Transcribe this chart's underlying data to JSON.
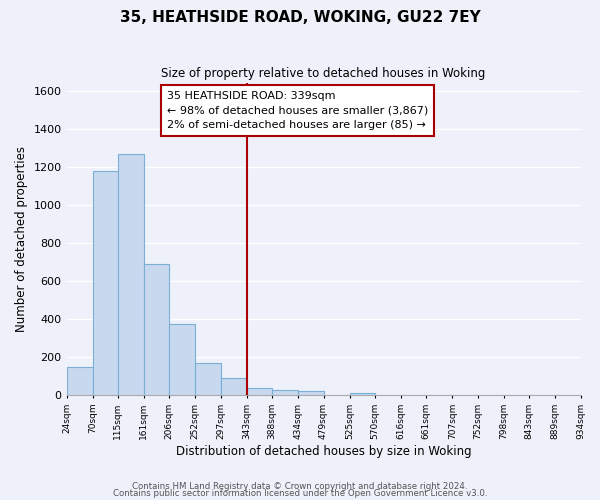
{
  "title": "35, HEATHSIDE ROAD, WOKING, GU22 7EY",
  "subtitle": "Size of property relative to detached houses in Woking",
  "xlabel": "Distribution of detached houses by size in Woking",
  "ylabel": "Number of detached properties",
  "bar_edges": [
    24,
    70,
    115,
    161,
    206,
    252,
    297,
    343,
    388,
    434,
    479,
    525,
    570,
    616,
    661,
    707,
    752,
    798,
    843,
    889,
    934
  ],
  "bar_heights": [
    148,
    1180,
    1265,
    690,
    375,
    170,
    90,
    38,
    25,
    20,
    0,
    12,
    0,
    0,
    0,
    0,
    0,
    0,
    0,
    0
  ],
  "bar_color": "#c8d9ef",
  "bar_edgecolor": "#7aafd4",
  "vline_x": 343,
  "vline_color": "#aa0000",
  "annotation_title": "35 HEATHSIDE ROAD: 339sqm",
  "annotation_line1": "← 98% of detached houses are smaller (3,867)",
  "annotation_line2": "2% of semi-detached houses are larger (85) →",
  "annotation_box_edgecolor": "#aa0000",
  "ylim": [
    0,
    1640
  ],
  "yticks": [
    0,
    200,
    400,
    600,
    800,
    1000,
    1200,
    1400,
    1600
  ],
  "footer1": "Contains HM Land Registry data © Crown copyright and database right 2024.",
  "footer2": "Contains public sector information licensed under the Open Government Licence v3.0.",
  "bg_color": "#eef1fa",
  "plot_bg_color": "#eef1fa",
  "grid_color": "#ffffff"
}
